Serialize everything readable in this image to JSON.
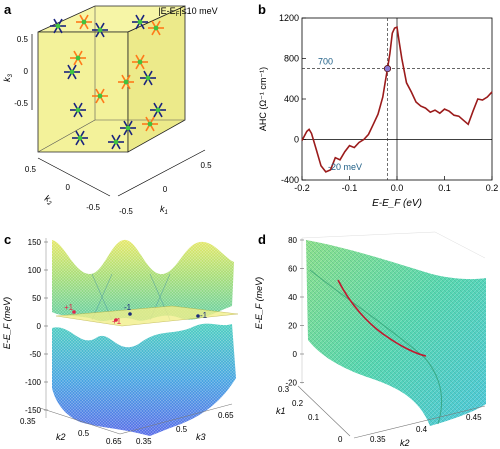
{
  "panel_labels": {
    "a": "a",
    "b": "b",
    "c": "c",
    "d": "d"
  },
  "panel_a": {
    "annotation": "|E-E",
    "annotation_sub": "F",
    "annotation_tail": "|≤10 meV",
    "k1_label": "k",
    "k1_sub": "1",
    "k2_label": "k",
    "k2_sub": "2",
    "k3_label": "k",
    "k3_sub": "3",
    "k1_ticks": [
      "-0.5",
      "0",
      "0.5"
    ],
    "k2_ticks": [
      "0.5",
      "0",
      "-0.5"
    ],
    "k3_ticks": [
      "0.5",
      "0",
      "-0.5"
    ],
    "colors": {
      "face": "#f3f29a",
      "blue": "#1a237e",
      "orange": "#ff7a1a",
      "green": "#3fc33f"
    }
  },
  "chart_data": [
    {
      "type": "line",
      "panel": "b",
      "xlabel": "E-E_F (eV)",
      "ylabel": "AHC (Ω⁻¹ cm⁻¹)",
      "xlim": [
        -0.2,
        0.2
      ],
      "ylim": [
        -400,
        1200
      ],
      "xticks": [
        "-0.2",
        "-0.1",
        "0.0",
        "0.1",
        "0.2"
      ],
      "yticks": [
        "-400",
        "0",
        "400",
        "800",
        "1200"
      ],
      "annotations": [
        "700",
        "-20 meV"
      ],
      "marker": {
        "x": -0.02,
        "y": 700
      },
      "series_color": "#9b1b1b",
      "x": [
        -0.2,
        -0.19,
        -0.185,
        -0.18,
        -0.17,
        -0.16,
        -0.15,
        -0.14,
        -0.13,
        -0.12,
        -0.11,
        -0.1,
        -0.09,
        -0.08,
        -0.07,
        -0.06,
        -0.05,
        -0.04,
        -0.03,
        -0.025,
        -0.02,
        -0.015,
        -0.01,
        -0.005,
        0.0,
        0.005,
        0.01,
        0.02,
        0.03,
        0.04,
        0.05,
        0.06,
        0.07,
        0.08,
        0.09,
        0.1,
        0.11,
        0.12,
        0.13,
        0.14,
        0.15,
        0.16,
        0.17,
        0.18,
        0.19,
        0.2
      ],
      "y": [
        -10,
        80,
        100,
        60,
        -100,
        -260,
        -320,
        -300,
        -180,
        -200,
        -120,
        -60,
        -80,
        -30,
        0,
        50,
        150,
        250,
        420,
        560,
        700,
        850,
        1050,
        1100,
        1110,
        950,
        800,
        560,
        470,
        370,
        330,
        310,
        270,
        290,
        260,
        300,
        280,
        240,
        230,
        190,
        150,
        280,
        400,
        390,
        420,
        470
      ]
    },
    {
      "type": "surface",
      "panel": "c",
      "zlabel": "E-E_F (meV)",
      "zticks": [
        "150",
        "100",
        "50",
        "0",
        "-50",
        "-100",
        "-150"
      ],
      "k2_label": "k2",
      "k2_ticks": [
        "0.35",
        "0.5",
        "0.65"
      ],
      "k3_label": "k3",
      "k3_ticks": [
        "0.35",
        "0.5",
        "0.65"
      ],
      "charges": [
        "+1",
        "-1",
        "+1",
        "-1"
      ]
    },
    {
      "type": "surface",
      "panel": "d",
      "zlabel": "E-E_F (meV)",
      "zticks": [
        "80",
        "60",
        "40",
        "20",
        "0",
        "-20"
      ],
      "k1_label": "k1",
      "k1_ticks": [
        "0.3",
        "0.2",
        "0.1",
        "0"
      ],
      "k2_label": "k2",
      "k2_ticks": [
        "0.35",
        "0.4",
        "0.45"
      ]
    }
  ]
}
